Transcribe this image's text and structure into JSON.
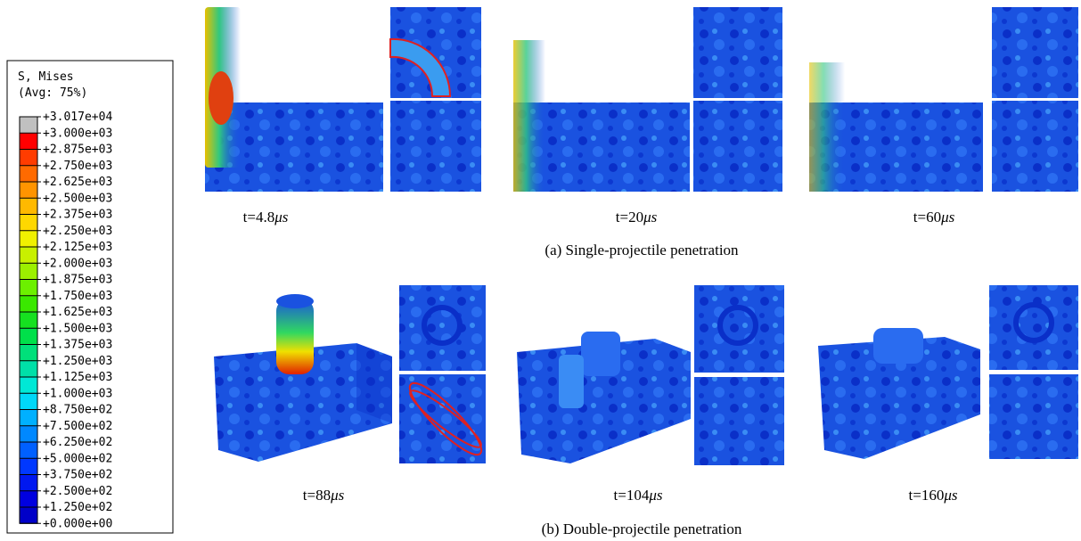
{
  "legend": {
    "title": "S, Mises",
    "subtitle": "(Avg: 75%)",
    "labels": [
      "+3.017e+04",
      "+3.000e+03",
      "+2.875e+03",
      "+2.750e+03",
      "+2.625e+03",
      "+2.500e+03",
      "+2.375e+03",
      "+2.250e+03",
      "+2.125e+03",
      "+2.000e+03",
      "+1.875e+03",
      "+1.750e+03",
      "+1.625e+03",
      "+1.500e+03",
      "+1.375e+03",
      "+1.250e+03",
      "+1.125e+03",
      "+1.000e+03",
      "+8.750e+02",
      "+7.500e+02",
      "+6.250e+02",
      "+5.000e+02",
      "+3.750e+02",
      "+2.500e+02",
      "+1.250e+02",
      "+0.000e+00"
    ],
    "colors": [
      "#c0c0c0",
      "#ff0000",
      "#ff3c00",
      "#ff6a00",
      "#ff9400",
      "#ffb900",
      "#ffd800",
      "#f0f000",
      "#c8f000",
      "#9cf000",
      "#6cf000",
      "#3ae800",
      "#16e020",
      "#00e04a",
      "#00e07a",
      "#00e0a8",
      "#00e8d6",
      "#00d8f8",
      "#00b0ff",
      "#0088ff",
      "#0060ff",
      "#0038ff",
      "#0018f0",
      "#0000e0",
      "#0000c8"
    ]
  },
  "panels": {
    "a": {
      "caption": "(a) Single-projectile penetration",
      "times": [
        {
          "text": "t=4.8",
          "unit": "μs"
        },
        {
          "text": "t=20",
          "unit": "μs"
        },
        {
          "text": "t=60",
          "unit": "μs"
        }
      ]
    },
    "b": {
      "caption": "(b) Double-projectile penetration",
      "times": [
        {
          "text": "t=88",
          "unit": "μs"
        },
        {
          "text": "t=104",
          "unit": "μs"
        },
        {
          "text": "t=160",
          "unit": "μs"
        }
      ]
    }
  }
}
